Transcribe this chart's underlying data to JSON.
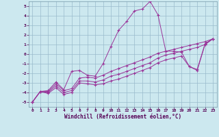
{
  "bg_color": "#cce8ef",
  "grid_color": "#99bbcc",
  "line_color": "#993399",
  "xlabel": "Windchill (Refroidissement éolien,°C)",
  "xlim": [
    -0.5,
    23.5
  ],
  "ylim": [
    -5.5,
    5.5
  ],
  "yticks": [
    -5,
    -4,
    -3,
    -2,
    -1,
    0,
    1,
    2,
    3,
    4,
    5
  ],
  "xticks": [
    0,
    1,
    2,
    3,
    4,
    5,
    6,
    7,
    8,
    9,
    10,
    11,
    12,
    13,
    14,
    15,
    16,
    17,
    18,
    19,
    20,
    21,
    22,
    23
  ],
  "series": [
    [
      -5.0,
      -3.9,
      -3.8,
      -2.9,
      -3.7,
      -1.8,
      -1.7,
      -2.2,
      -2.3,
      -1.0,
      0.8,
      2.5,
      3.4,
      4.5,
      4.7,
      5.5,
      4.1,
      0.3,
      0.3,
      0.2,
      -1.3,
      -1.6,
      1.1,
      1.6
    ],
    [
      -5.0,
      -3.9,
      -3.9,
      -3.1,
      -3.8,
      -3.6,
      -2.5,
      -2.4,
      -2.5,
      -2.2,
      -1.8,
      -1.5,
      -1.2,
      -0.9,
      -0.6,
      -0.3,
      0.1,
      0.3,
      0.5,
      0.7,
      0.9,
      1.1,
      1.3,
      1.6
    ],
    [
      -5.0,
      -3.9,
      -4.0,
      -3.3,
      -4.0,
      -3.8,
      -2.8,
      -2.8,
      -2.9,
      -2.7,
      -2.3,
      -2.1,
      -1.8,
      -1.5,
      -1.2,
      -0.9,
      -0.4,
      -0.1,
      0.1,
      0.3,
      0.5,
      0.7,
      1.0,
      1.6
    ],
    [
      -5.0,
      -3.9,
      -4.1,
      -3.5,
      -4.2,
      -4.0,
      -3.0,
      -3.1,
      -3.2,
      -3.1,
      -2.8,
      -2.6,
      -2.3,
      -2.0,
      -1.7,
      -1.4,
      -0.9,
      -0.6,
      -0.4,
      -0.2,
      -1.3,
      -1.7,
      1.0,
      1.6
    ]
  ]
}
